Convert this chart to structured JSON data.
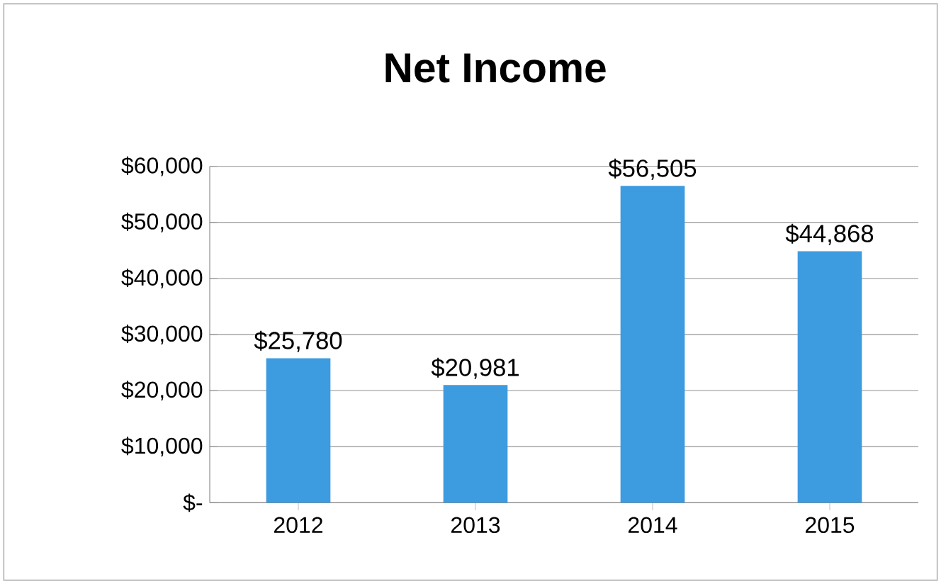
{
  "chart_data": {
    "type": "bar",
    "title": "Net Income",
    "categories": [
      "2012",
      "2013",
      "2014",
      "2015"
    ],
    "values": [
      25780,
      20981,
      56505,
      44868
    ],
    "value_labels": [
      "$25,780",
      "$20,981",
      "$56,505",
      "$44,868"
    ],
    "color": "#3d9be0",
    "ylim": [
      0,
      60000
    ],
    "yticks": [
      {
        "value": 0,
        "label": "$-"
      },
      {
        "value": 10000,
        "label": "$10,000"
      },
      {
        "value": 20000,
        "label": "$20,000"
      },
      {
        "value": 30000,
        "label": "$30,000"
      },
      {
        "value": 40000,
        "label": "$40,000"
      },
      {
        "value": 50000,
        "label": "$50,000"
      },
      {
        "value": 60000,
        "label": "$60,000"
      }
    ],
    "grid": "y"
  }
}
